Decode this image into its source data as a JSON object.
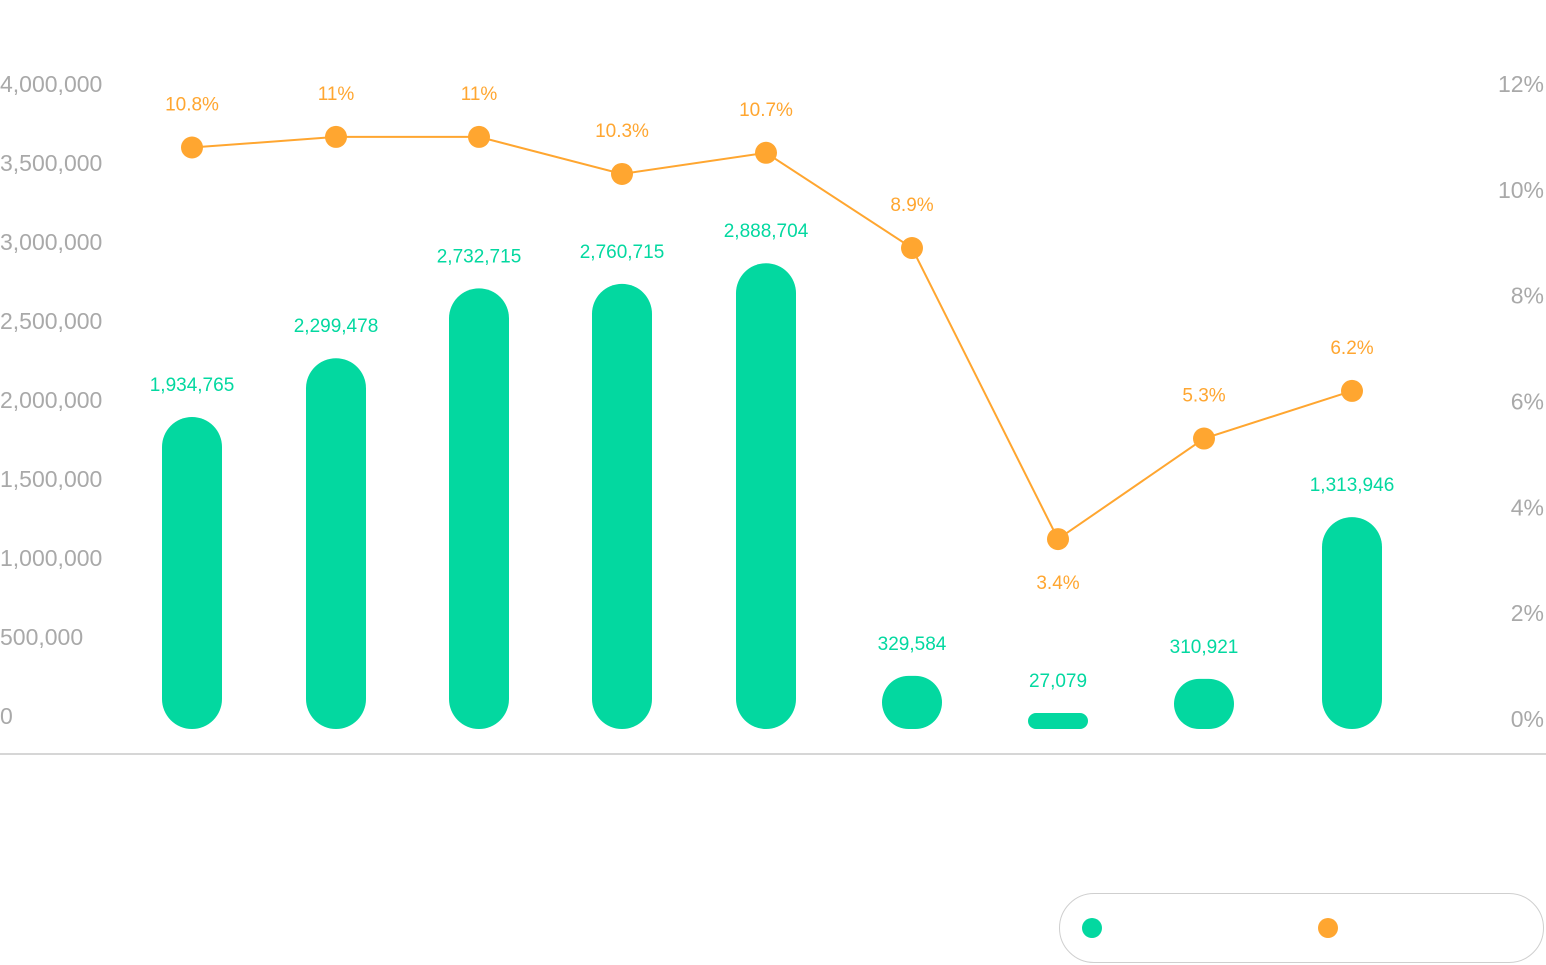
{
  "chart_data": {
    "type": "bar",
    "title": "",
    "xlabel": "",
    "ylabel": "",
    "categories": [
      "",
      "",
      "",
      "",
      "",
      "",
      "",
      "",
      ""
    ],
    "series": [
      {
        "name": "",
        "type": "bar",
        "axis": "left",
        "color": "#03d8a0",
        "values": [
          1934765,
          2299478,
          2732715,
          2760715,
          2888704,
          329584,
          27079,
          310921,
          1313946
        ],
        "labels": [
          "1,934,765",
          "2,299,478",
          "2,732,715",
          "2,760,715",
          "2,888,704",
          "329,584",
          "27,079",
          "310,921",
          "1,313,946"
        ]
      },
      {
        "name": "",
        "type": "line",
        "axis": "right",
        "color": "#ffa630",
        "values": [
          10.8,
          11,
          11,
          10.3,
          10.7,
          8.9,
          3.4,
          5.3,
          6.2
        ],
        "labels": [
          "10.8%",
          "11%",
          "11%",
          "10.3%",
          "10.7%",
          "8.9%",
          "3.4%",
          "5.3%",
          "6.2%"
        ]
      }
    ],
    "y_left": {
      "range": [
        0,
        4000000
      ],
      "ticks": [
        "0",
        "500,000",
        "1,000,000",
        "1,500,000",
        "2,000,000",
        "2,500,000",
        "3,000,000",
        "3,500,000",
        "4,000,000"
      ]
    },
    "y_right": {
      "range": [
        0,
        12
      ],
      "ticks": [
        "0%",
        "2%",
        "4%",
        "6%",
        "8%",
        "10%",
        "12%"
      ]
    },
    "grid": false,
    "legend_position": "bottom-right"
  }
}
